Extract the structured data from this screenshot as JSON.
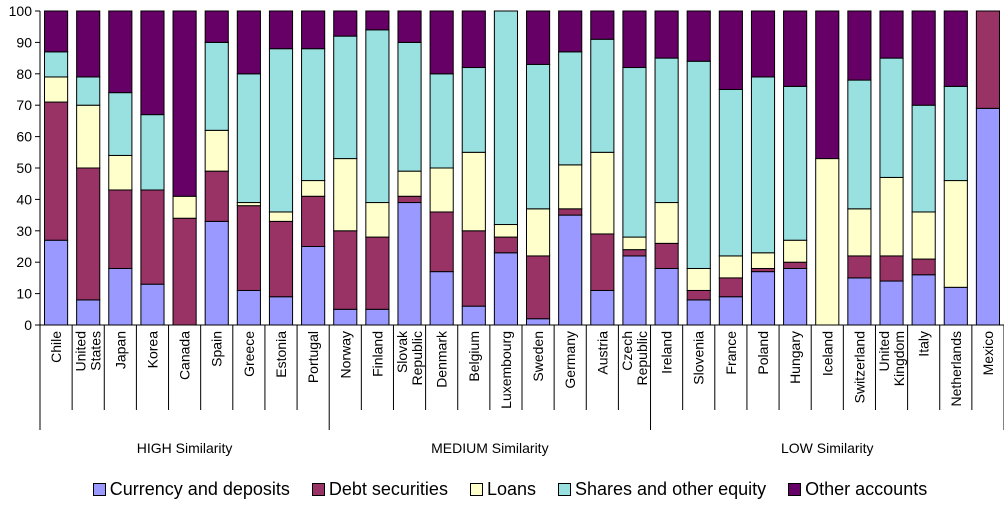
{
  "chart_data": {
    "type": "bar",
    "stacked": true,
    "ylim": [
      0,
      100
    ],
    "yticks": [
      0,
      10,
      20,
      30,
      40,
      50,
      60,
      70,
      80,
      90,
      100
    ],
    "grid": false,
    "legend_position": "bottom",
    "categories": [
      {
        "label": "Chile",
        "lines": [
          "Chile"
        ]
      },
      {
        "label": "United States",
        "lines": [
          "United",
          "States"
        ]
      },
      {
        "label": "Japan",
        "lines": [
          "Japan"
        ]
      },
      {
        "label": "Korea",
        "lines": [
          "Korea"
        ]
      },
      {
        "label": "Canada",
        "lines": [
          "Canada"
        ]
      },
      {
        "label": "Spain",
        "lines": [
          "Spain"
        ]
      },
      {
        "label": "Greece",
        "lines": [
          "Greece"
        ]
      },
      {
        "label": "Estonia",
        "lines": [
          "Estonia"
        ]
      },
      {
        "label": "Portugal",
        "lines": [
          "Portugal"
        ]
      },
      {
        "label": "Norway",
        "lines": [
          "Norway"
        ]
      },
      {
        "label": "Finland",
        "lines": [
          "Finland"
        ]
      },
      {
        "label": "Slovak Republic",
        "lines": [
          "Slovak",
          "Republic"
        ]
      },
      {
        "label": "Denmark",
        "lines": [
          "Denmark"
        ]
      },
      {
        "label": "Belgium",
        "lines": [
          "Belgium"
        ]
      },
      {
        "label": "Luxembourg",
        "lines": [
          "Luxembourg"
        ]
      },
      {
        "label": "Sweden",
        "lines": [
          "Sweden"
        ]
      },
      {
        "label": "Germany",
        "lines": [
          "Germany"
        ]
      },
      {
        "label": "Austria",
        "lines": [
          "Austria"
        ]
      },
      {
        "label": "Czech Republic",
        "lines": [
          "Czech",
          "Republic"
        ]
      },
      {
        "label": "Ireland",
        "lines": [
          "Ireland"
        ]
      },
      {
        "label": "Slovenia",
        "lines": [
          "Slovenia"
        ]
      },
      {
        "label": "France",
        "lines": [
          "France"
        ]
      },
      {
        "label": "Poland",
        "lines": [
          "Poland"
        ]
      },
      {
        "label": "Hungary",
        "lines": [
          "Hungary"
        ]
      },
      {
        "label": "Iceland",
        "lines": [
          "Iceland"
        ]
      },
      {
        "label": "Switzerland",
        "lines": [
          "Switzerland"
        ]
      },
      {
        "label": "United Kingdom",
        "lines": [
          "United",
          "Kingdom"
        ]
      },
      {
        "label": "Italy",
        "lines": [
          "Italy"
        ]
      },
      {
        "label": "Netherlands",
        "lines": [
          "Netherlands"
        ]
      },
      {
        "label": "Mexico",
        "lines": [
          "Mexico"
        ]
      }
    ],
    "groups": [
      {
        "label": "HIGH Similarity",
        "start": 0,
        "end": 8
      },
      {
        "label": "MEDIUM Similarity",
        "start": 9,
        "end": 18
      },
      {
        "label": "LOW Similarity",
        "start": 19,
        "end": 29
      }
    ],
    "series": [
      {
        "name": "Currency and deposits",
        "color": "#9999ff",
        "values": [
          27,
          8,
          18,
          13,
          0,
          33,
          11,
          9,
          25,
          5,
          5,
          39,
          17,
          6,
          23,
          2,
          35,
          11,
          22,
          18,
          8,
          9,
          17,
          18,
          0,
          15,
          14,
          16,
          12,
          69
        ]
      },
      {
        "name": "Debt securities",
        "color": "#993366",
        "values": [
          44,
          42,
          25,
          30,
          34,
          16,
          27,
          24,
          16,
          25,
          23,
          2,
          19,
          24,
          5,
          20,
          2,
          18,
          2,
          8,
          3,
          6,
          1,
          2,
          0,
          7,
          8,
          5,
          0,
          31
        ]
      },
      {
        "name": "Loans",
        "color": "#ffffcc",
        "values": [
          8,
          20,
          11,
          0,
          7,
          13,
          1,
          3,
          5,
          23,
          11,
          8,
          14,
          25,
          4,
          15,
          14,
          26,
          4,
          13,
          7,
          7,
          5,
          7,
          53,
          15,
          25,
          15,
          34,
          0
        ]
      },
      {
        "name": "Shares and other equity",
        "color": "#99e0e0",
        "values": [
          8,
          9,
          20,
          24,
          0,
          28,
          41,
          52,
          42,
          39,
          55,
          41,
          30,
          27,
          68,
          46,
          36,
          36,
          54,
          46,
          66,
          53,
          56,
          49,
          0,
          41,
          38,
          34,
          30,
          0
        ]
      },
      {
        "name": "Other accounts",
        "color": "#660066",
        "values": [
          13,
          21,
          26,
          33,
          59,
          10,
          20,
          12,
          12,
          8,
          6,
          10,
          20,
          18,
          0,
          17,
          13,
          9,
          18,
          15,
          16,
          25,
          21,
          24,
          47,
          22,
          15,
          30,
          24,
          0
        ]
      }
    ]
  }
}
